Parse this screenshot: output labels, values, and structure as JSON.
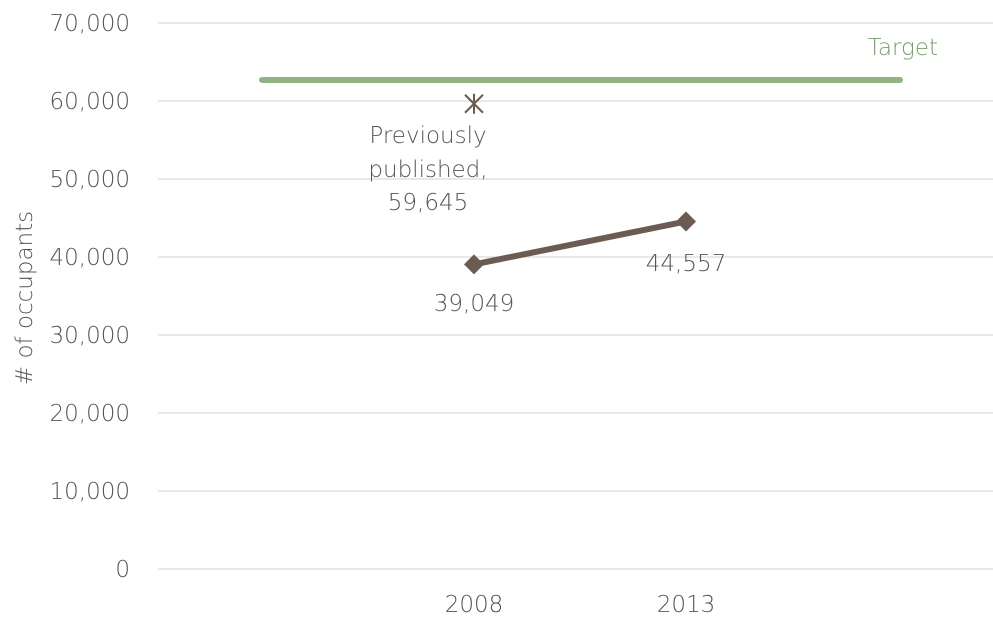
{
  "chart_data": {
    "type": "line",
    "ylabel": "# of occupants",
    "xlabel": "",
    "ylim": [
      0,
      70000
    ],
    "y_ticks": [
      "0",
      "10,000",
      "20,000",
      "30,000",
      "40,000",
      "50,000",
      "60,000",
      "70,000"
    ],
    "y_tick_values": [
      0,
      10000,
      20000,
      30000,
      40000,
      50000,
      60000,
      70000
    ],
    "categories": [
      "2008",
      "2013"
    ],
    "grid": true,
    "series": [
      {
        "values": [
          39049,
          44557
        ],
        "labels": [
          "39,049",
          "44,557"
        ],
        "color": "#6b5b52",
        "marker": "diamond"
      }
    ],
    "previously_published": {
      "category": "2008",
      "value": 59645,
      "label_lines": [
        "Previously",
        "published,",
        "59,645"
      ],
      "color": "#6b5b52",
      "marker": "asterisk"
    },
    "target": {
      "name": "Target",
      "value": 62700,
      "color": "#92b484",
      "label_color": "#7a9c6e"
    }
  }
}
